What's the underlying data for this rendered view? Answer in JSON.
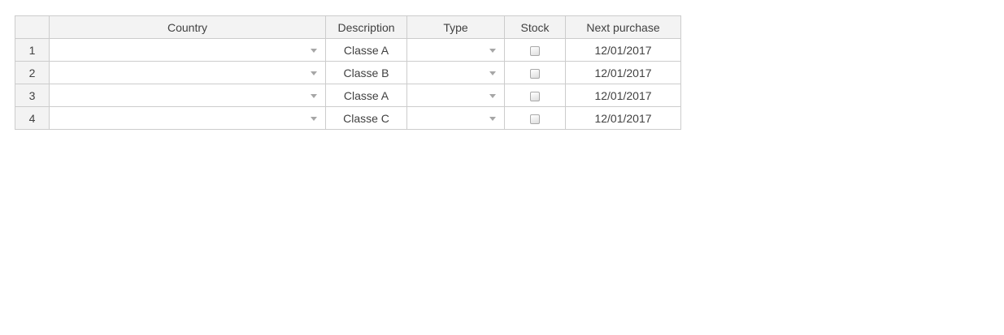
{
  "grid": {
    "headers": [
      "Country",
      "Description",
      "Type",
      "Stock",
      "Next purchase"
    ],
    "corner_label": "",
    "rows": [
      {
        "num": "1",
        "country": "",
        "description": "Classe A",
        "type": "",
        "stock_checked": false,
        "next_purchase": "12/01/2017"
      },
      {
        "num": "2",
        "country": "",
        "description": "Classe B",
        "type": "",
        "stock_checked": false,
        "next_purchase": "12/01/2017"
      },
      {
        "num": "3",
        "country": "",
        "description": "Classe A",
        "type": "",
        "stock_checked": false,
        "next_purchase": "12/01/2017"
      },
      {
        "num": "4",
        "country": "",
        "description": "Classe C",
        "type": "",
        "stock_checked": false,
        "next_purchase": "12/01/2017"
      }
    ],
    "icons": {
      "dropdown_arrow": "triangle-down",
      "stock_checkbox": "checkbox-unchecked"
    },
    "colors": {
      "header_bg": "#f3f3f3",
      "border": "#cccccc",
      "text": "#414141",
      "arrow": "#a6a6a6",
      "cell_bg": "#ffffff"
    }
  }
}
